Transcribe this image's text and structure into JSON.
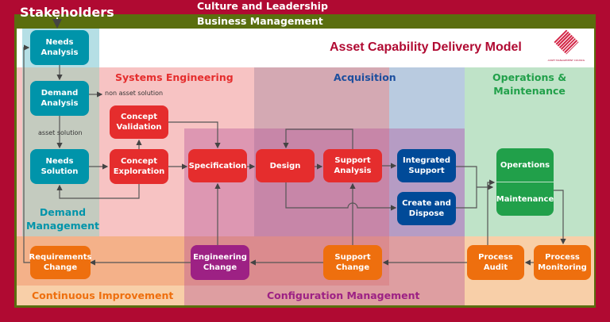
{
  "header": {
    "stakeholders": "Stakeholders",
    "culture": "Culture and Leadership",
    "business": "Business Management",
    "title": "Asset Capability Delivery Model",
    "logo_text": "ASSET MANAGEMENT COUNCIL"
  },
  "zones": {
    "systems_engineering": "Systems Engineering",
    "acquisition": "Acquisition",
    "operations": "Operations &\nMaintenance",
    "demand": "Demand\nManagement",
    "continuous": "Continuous Improvement",
    "configuration": "Configuration Management"
  },
  "annotations": {
    "non_asset": "non asset solution",
    "asset": "asset solution"
  },
  "boxes": {
    "needs_analysis": "Needs\nAnalysis",
    "demand_analysis": "Demand\nAnalysis",
    "needs_solution": "Needs\nSolution",
    "concept_validation": "Concept\nValidation",
    "concept_exploration": "Concept\nExploration",
    "specification": "Specification",
    "design": "Design",
    "support_analysis": "Support\nAnalysis",
    "integrated_support": "Integrated\nSupport",
    "create_dispose": "Create and\nDispose",
    "operations": "Operations",
    "maintenance": "Maintenance",
    "requirements_change": "Requirements\nChange",
    "engineering_change": "Engineering\nChange",
    "support_change": "Support\nChange",
    "process_audit": "Process\nAudit",
    "process_monitoring": "Process\nMonitoring"
  },
  "colors": {
    "frame": "#b00a32",
    "band": "#5a6e0e",
    "teal": "#0094aa",
    "red": "#e52d2d",
    "blue": "#004a98",
    "green": "#21a04a",
    "orange": "#ee6f0e",
    "purple": "#9d2184"
  }
}
